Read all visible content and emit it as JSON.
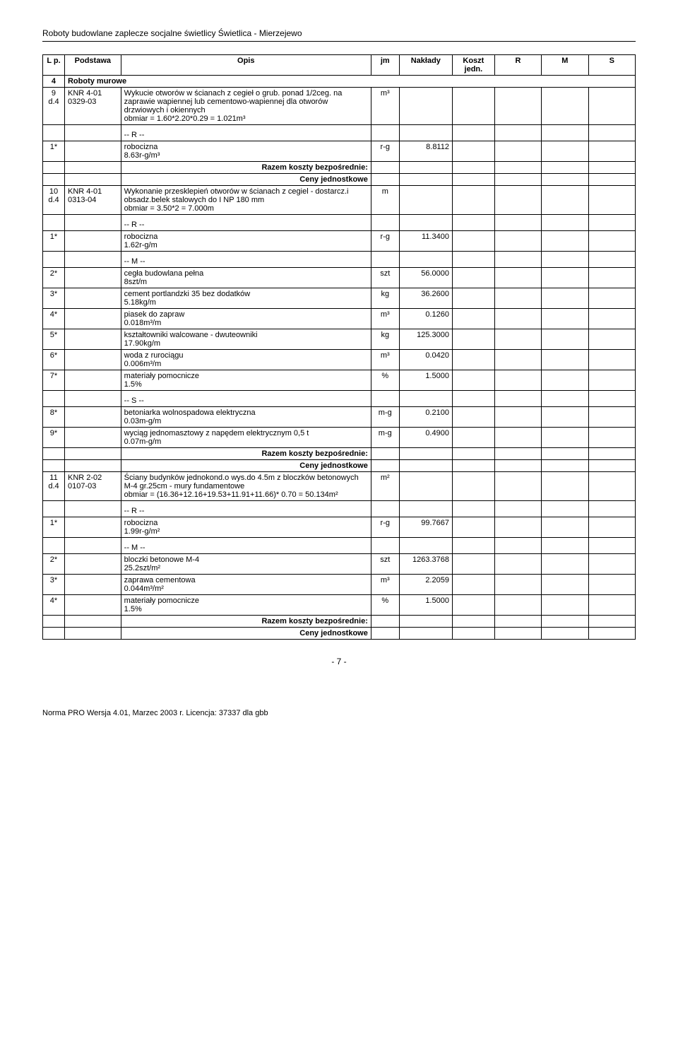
{
  "doc_title": "Roboty budowlane zaplecze socjalne świetlicy Świetlica -  Mierzejewo",
  "columns": {
    "lp": "L p.",
    "podstawa": "Podstawa",
    "opis": "Opis",
    "jm": "jm",
    "naklady": "Nakłady",
    "koszt": "Koszt jedn.",
    "r": "R",
    "m": "M",
    "s": "S"
  },
  "section4": {
    "num": "4",
    "title": "Roboty murowe"
  },
  "row9": {
    "lp": "9 d.4",
    "pod": "KNR 4-01 0329-03",
    "opis": "Wykucie otworów w ścianach z cegieł o grub. ponad 1/2ceg. na zaprawie wapiennej lub cementowo-wapiennej dla otworów drzwiowych i okiennych",
    "obmiar": "obmiar = 1.60*2.20*0.29 = 1.021m³",
    "jm": "m³",
    "r_label": "-- R --",
    "r1": {
      "star": "1*",
      "txt": "robocizna",
      "rate": "8.63r-g/m³",
      "jm": "r-g",
      "val": "8.8112"
    },
    "rkb": "Razem koszty bezpośrednie:",
    "cj": "Ceny jednostkowe"
  },
  "row10": {
    "lp": "10 d.4",
    "pod": "KNR 4-01 0313-04",
    "opis": "Wykonanie przesklepień otworów w ścianach z cegiel - dostarcz.i obsadz.belek stalowych do I NP 180 mm",
    "obmiar": "obmiar = 3.50*2 = 7.000m",
    "jm": "m",
    "r_label": "-- R --",
    "r1": {
      "star": "1*",
      "txt": "robocizna",
      "rate": "1.62r-g/m",
      "jm": "r-g",
      "val": "11.3400"
    },
    "m_label": "-- M --",
    "m2": {
      "star": "2*",
      "txt": "cegła budowlana pełna",
      "rate": "8szt/m",
      "jm": "szt",
      "val": "56.0000"
    },
    "m3": {
      "star": "3*",
      "txt": "cement portlandzki 35 bez dodatków",
      "rate": "5.18kg/m",
      "jm": "kg",
      "val": "36.2600"
    },
    "m4": {
      "star": "4*",
      "txt": "piasek do zapraw",
      "rate": "0.018m³/m",
      "jm": "m³",
      "val": "0.1260"
    },
    "m5": {
      "star": "5*",
      "txt": "kształtowniki walcowane - dwuteowniki",
      "rate": "17.90kg/m",
      "jm": "kg",
      "val": "125.3000"
    },
    "m6": {
      "star": "6*",
      "txt": "woda z rurociągu",
      "rate": "0.006m³/m",
      "jm": "m³",
      "val": "0.0420"
    },
    "m7": {
      "star": "7*",
      "txt": "materiały pomocnicze",
      "rate": "1.5%",
      "jm": "%",
      "val": "1.5000"
    },
    "s_label": "-- S --",
    "s8": {
      "star": "8*",
      "txt": "betoniarka wolnospadowa elektryczna",
      "rate": "0.03m-g/m",
      "jm": "m-g",
      "val": "0.2100"
    },
    "s9": {
      "star": "9*",
      "txt": "wyciąg jednomasztowy z napędem elektrycznym 0,5 t",
      "rate": "0.07m-g/m",
      "jm": "m-g",
      "val": "0.4900"
    },
    "rkb": "Razem koszty bezpośrednie:",
    "cj": "Ceny jednostkowe"
  },
  "row11": {
    "lp": "11 d.4",
    "pod": "KNR 2-02 0107-03",
    "opis": "Ściany budynków jednokond.o wys.do 4.5m z bloczków betonowych M-4 gr.25cm - mury fundamentowe",
    "obmiar": "obmiar = (16.36+12.16+19.53+11.91+11.66)* 0.70 = 50.134m²",
    "jm": "m²",
    "r_label": "-- R --",
    "r1": {
      "star": "1*",
      "txt": "robocizna",
      "rate": "1.99r-g/m²",
      "jm": "r-g",
      "val": "99.7667"
    },
    "m_label": "-- M --",
    "m2": {
      "star": "2*",
      "txt": "bloczki betonowe M-4",
      "rate": "25.2szt/m²",
      "jm": "szt",
      "val": "1263.3768"
    },
    "m3": {
      "star": "3*",
      "txt": "zaprawa cementowa",
      "rate": "0.044m³/m²",
      "jm": "m³",
      "val": "2.2059"
    },
    "m4": {
      "star": "4*",
      "txt": "materiały pomocnicze",
      "rate": "1.5%",
      "jm": "%",
      "val": "1.5000"
    },
    "rkb": "Razem koszty bezpośrednie:",
    "cj": "Ceny jednostkowe"
  },
  "page_number": "- 7 -",
  "footer": "Norma PRO Wersja 4.01, Marzec 2003 r. Licencja: 37337 dla gbb"
}
